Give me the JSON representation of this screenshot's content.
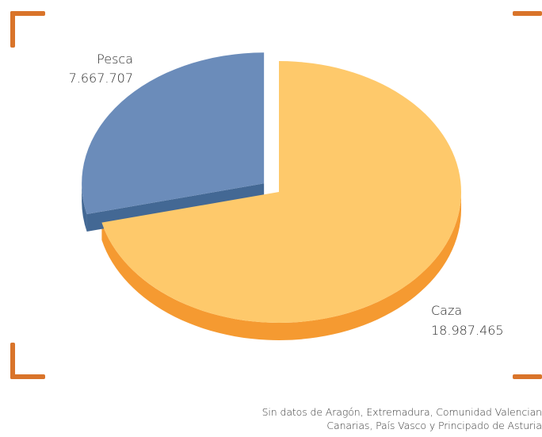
{
  "chart_data": {
    "type": "pie",
    "title": "",
    "slices": [
      {
        "label": "Pesca",
        "value": 7667707,
        "display_value": "7.667.707",
        "color": "#6b8cba",
        "side_color": "#436894"
      },
      {
        "label": "Caza",
        "value": 18987465,
        "display_value": "18.987.465",
        "color": "#fec96b",
        "side_color": "#f59a31"
      }
    ],
    "exploded": "Pesca",
    "three_d": true
  },
  "footnote": {
    "line1": "Sin datos de Aragón, Extremadura, Comunidad Valencian",
    "line2": "Canarias, País Vasco y Principado de Asturia"
  },
  "frame_color": "#d9742a"
}
